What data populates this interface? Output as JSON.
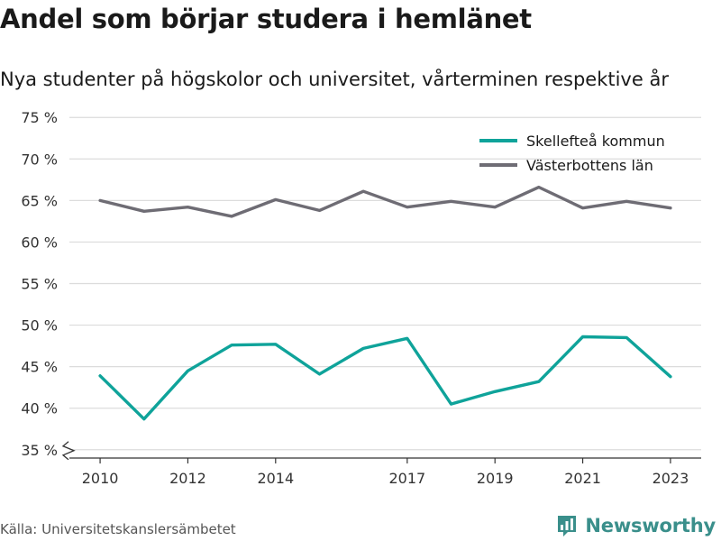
{
  "header": {
    "title": "Andel som börjar studera i hemlänet",
    "subtitle": "Nya studenter på högskolor och universitet, vårterminen respektive år"
  },
  "footer": {
    "source": "Källa: Universitetskanslersämbetet",
    "brand": "Newsworthy",
    "brand_icon": "bar-chart-logo-icon"
  },
  "colors": {
    "skelleftea": "#0fa39a",
    "vasterbotten": "#6e6c74",
    "grid": "#dcdcdc",
    "brand": "#3a8f8b"
  },
  "chart_data": {
    "type": "line",
    "x": [
      2010,
      2011,
      2012,
      2013,
      2014,
      2015,
      2016,
      2017,
      2018,
      2019,
      2020,
      2021,
      2022,
      2023
    ],
    "x_tick_values": [
      2010,
      2012,
      2014,
      2017,
      2019,
      2021,
      2023
    ],
    "x_tick_labels": [
      "2010",
      "2012",
      "2014",
      "2017",
      "2019",
      "2021",
      "2023"
    ],
    "ylim": [
      34,
      76
    ],
    "y_tick_values": [
      35,
      40,
      45,
      50,
      55,
      60,
      65,
      70,
      75
    ],
    "y_tick_labels": [
      "35 %",
      "40 %",
      "45 %",
      "50 %",
      "55 %",
      "60 %",
      "65 %",
      "70 %",
      "75 %"
    ],
    "y_axis_break": true,
    "grid": true,
    "legend_position": "top-right",
    "series": [
      {
        "name": "Skellefteå kommun",
        "color": "#0fa39a",
        "values": [
          43.9,
          38.7,
          44.5,
          47.6,
          47.7,
          44.1,
          47.2,
          48.4,
          40.5,
          42.0,
          43.2,
          48.6,
          48.5,
          43.8
        ]
      },
      {
        "name": "Västerbottens län",
        "color": "#6e6c74",
        "values": [
          65.0,
          63.7,
          64.2,
          63.1,
          65.1,
          63.8,
          66.1,
          64.2,
          64.9,
          64.2,
          66.6,
          64.1,
          64.9,
          64.1
        ]
      }
    ],
    "xlabel": "",
    "ylabel": ""
  }
}
